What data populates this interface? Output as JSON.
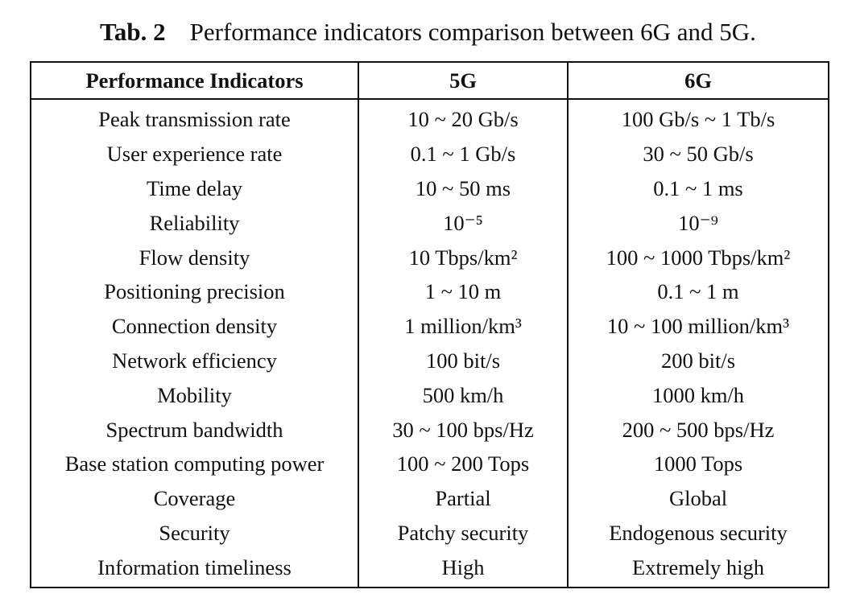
{
  "caption": {
    "label": "Tab. 2",
    "text": "Performance indicators comparison between 6G and 5G."
  },
  "table": {
    "headers": [
      "Performance Indicators",
      "5G",
      "6G"
    ],
    "rows": [
      [
        "Peak transmission rate",
        "10 ~ 20 Gb/s",
        "100 Gb/s ~ 1 Tb/s"
      ],
      [
        "User experience rate",
        "0.1 ~ 1 Gb/s",
        "30 ~ 50 Gb/s"
      ],
      [
        "Time delay",
        "10 ~ 50 ms",
        "0.1 ~ 1 ms"
      ],
      [
        "Reliability",
        "10⁻⁵",
        "10⁻⁹"
      ],
      [
        "Flow density",
        "10 Tbps/km²",
        "100 ~ 1000 Tbps/km²"
      ],
      [
        "Positioning precision",
        "1 ~ 10 m",
        "0.1 ~ 1 m"
      ],
      [
        "Connection density",
        "1 million/km³",
        "10 ~ 100 million/km³"
      ],
      [
        "Network efficiency",
        "100 bit/s",
        "200 bit/s"
      ],
      [
        "Mobility",
        "500 km/h",
        "1000 km/h"
      ],
      [
        "Spectrum bandwidth",
        "30 ~ 100 bps/Hz",
        "200 ~ 500 bps/Hz"
      ],
      [
        "Base station computing power",
        "100 ~ 200 Tops",
        "1000 Tops"
      ],
      [
        "Coverage",
        "Partial",
        "Global"
      ],
      [
        "Security",
        "Patchy security",
        "Endogenous security"
      ],
      [
        "Information timeliness",
        "High",
        "Extremely high"
      ]
    ]
  }
}
